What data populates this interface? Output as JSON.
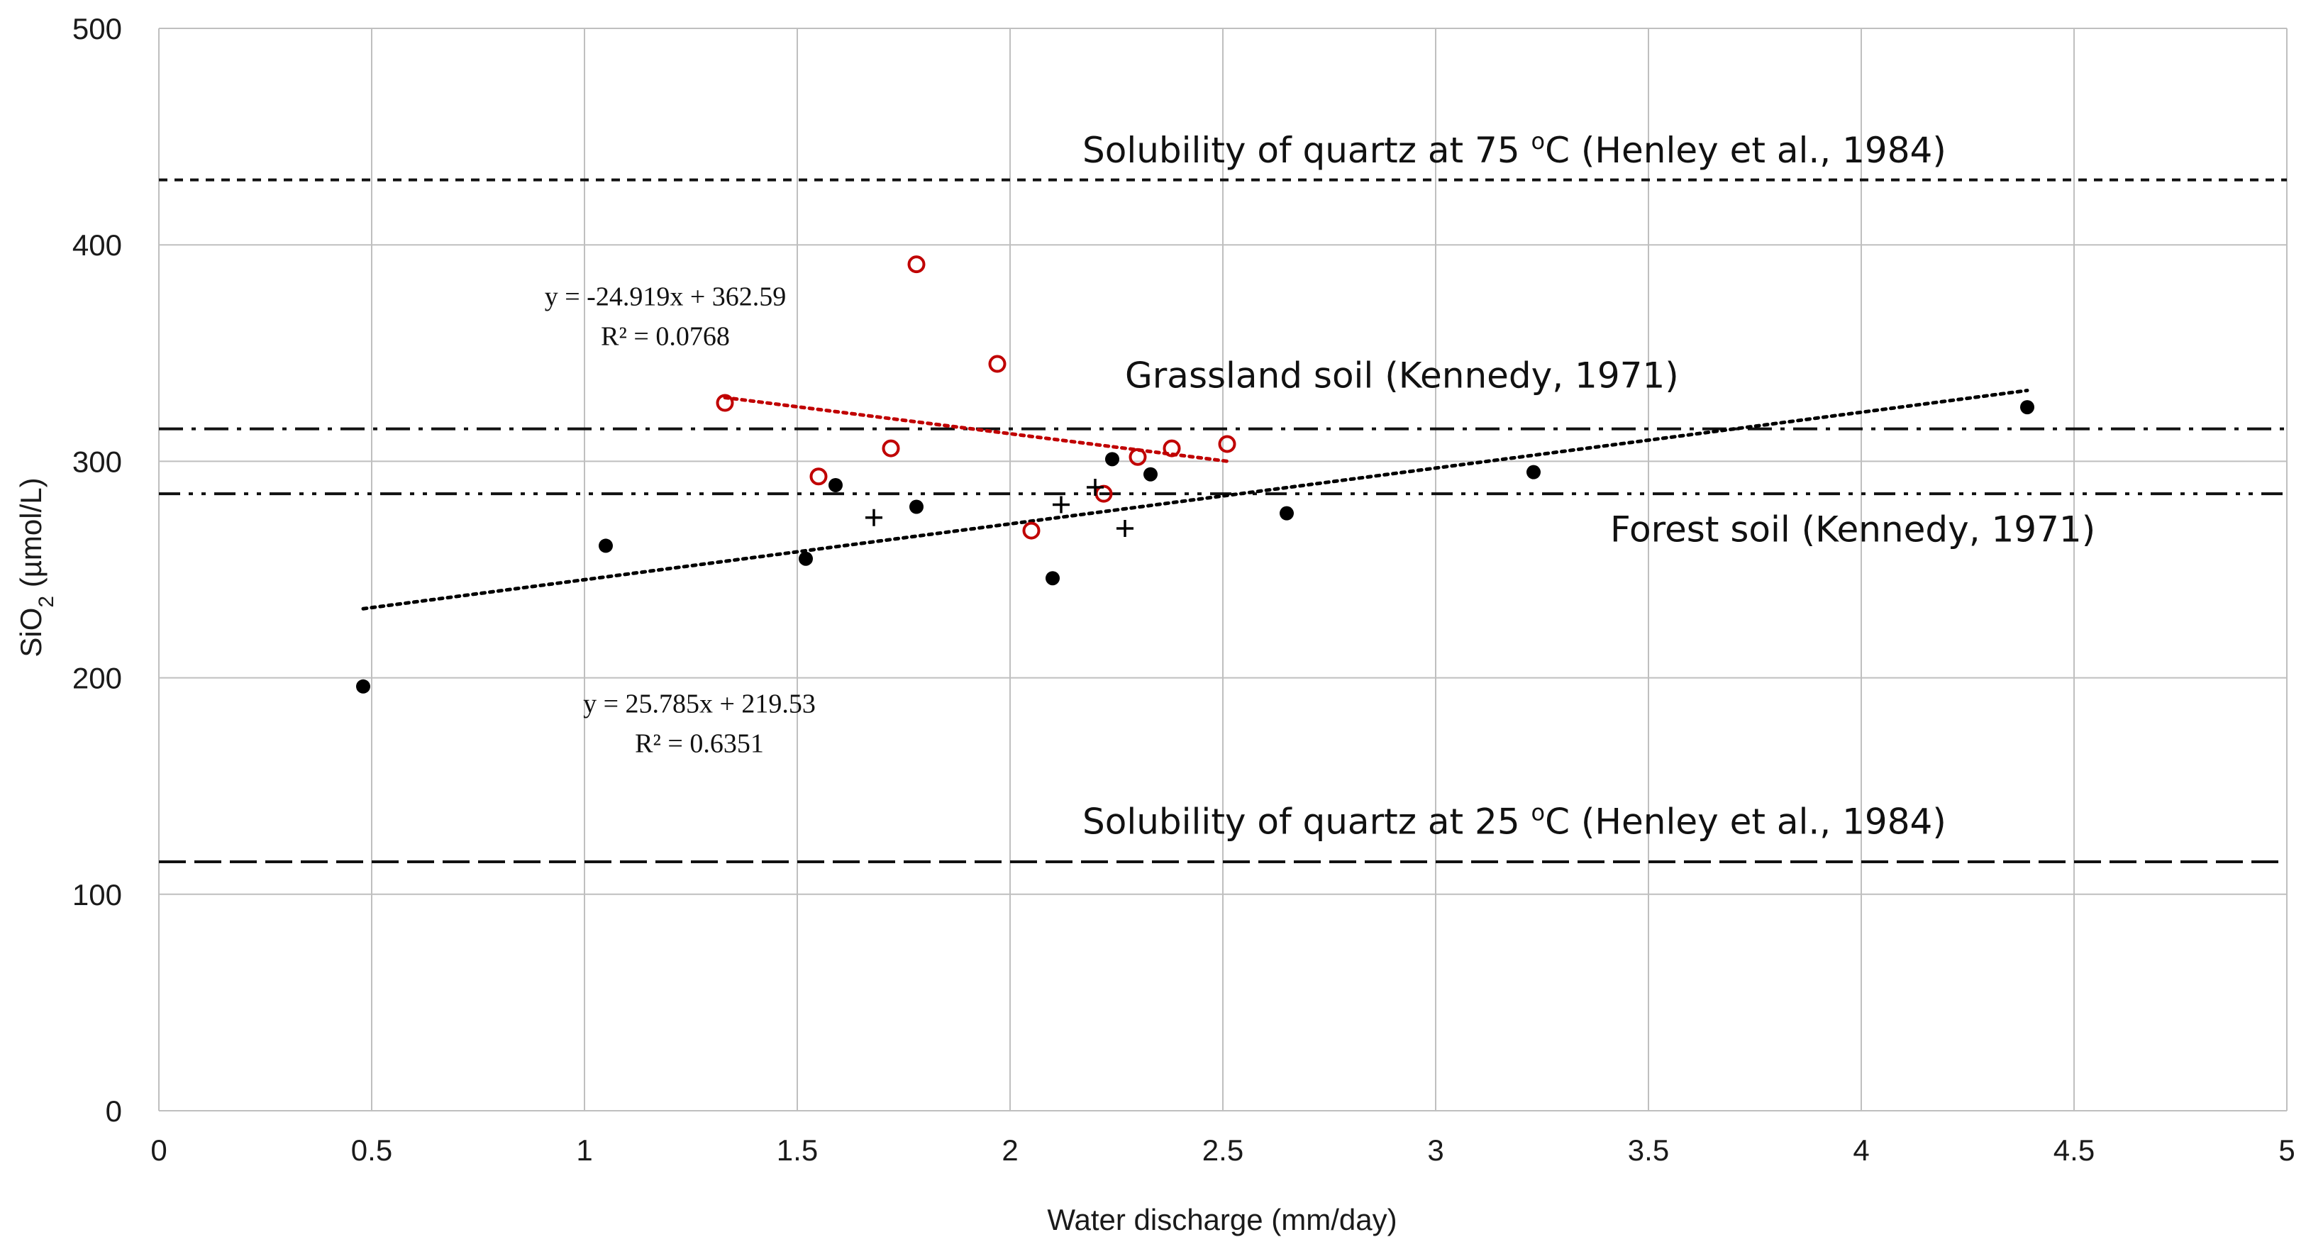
{
  "chart_data": {
    "type": "scatter",
    "xlabel": "Water discharge (mm/day)",
    "ylabel_parts": [
      "SiO",
      "2",
      " (µmol/L)"
    ],
    "xlim": [
      0,
      5
    ],
    "ylim": [
      0,
      500
    ],
    "x_ticks": [
      "0",
      "0.5",
      "1",
      "1.5",
      "2",
      "2.5",
      "3",
      "3.5",
      "4",
      "4.5",
      "5"
    ],
    "y_ticks": [
      "0",
      "100",
      "200",
      "300",
      "400",
      "500"
    ],
    "grid": true,
    "series": [
      {
        "marker": "filled-circle",
        "color": "#000000",
        "points": [
          [
            0.48,
            196
          ],
          [
            1.05,
            261
          ],
          [
            1.52,
            255
          ],
          [
            1.59,
            289
          ],
          [
            1.78,
            279
          ],
          [
            2.1,
            246
          ],
          [
            2.24,
            301
          ],
          [
            2.33,
            294
          ],
          [
            2.65,
            276
          ],
          [
            3.23,
            295
          ],
          [
            4.39,
            325
          ]
        ]
      },
      {
        "marker": "open-circle",
        "color": "#c00000",
        "points": [
          [
            1.33,
            327
          ],
          [
            1.55,
            293
          ],
          [
            1.72,
            306
          ],
          [
            1.78,
            391
          ],
          [
            1.97,
            345
          ],
          [
            2.05,
            268
          ],
          [
            2.22,
            285
          ],
          [
            2.3,
            302
          ],
          [
            2.38,
            306
          ],
          [
            2.51,
            308
          ]
        ]
      },
      {
        "marker": "plus",
        "color": "#000000",
        "points": [
          [
            1.68,
            274
          ],
          [
            2.12,
            280
          ],
          [
            2.2,
            288
          ],
          [
            2.27,
            269
          ]
        ]
      }
    ],
    "trendlines": [
      {
        "color": "#000000",
        "slope": 25.785,
        "intercept": 219.53,
        "x_range": [
          0.48,
          4.39
        ],
        "equation": "y = 25.785x + 219.53",
        "r2_text": "R² = 0.6351",
        "label_pos": [
          1.27,
          184
        ]
      },
      {
        "color": "#c00000",
        "slope": -24.919,
        "intercept": 362.59,
        "x_range": [
          1.33,
          2.51
        ],
        "equation": "y = -24.919x + 362.59",
        "r2_text": "R² = 0.0768",
        "label_pos": [
          1.19,
          372
        ]
      }
    ],
    "reference_lines": [
      {
        "y": 430,
        "style": "short-dash",
        "label_parts": [
          "Solubility of quartz at 75 ",
          "o",
          "C (Henley et al., 1984)"
        ],
        "label_x": 2.17,
        "label_y": 438
      },
      {
        "y": 315,
        "style": "dash-dot",
        "label_parts": [
          "Grassland soil  (Kennedy, 1971)"
        ],
        "label_x": 2.27,
        "label_y": 334
      },
      {
        "y": 285,
        "style": "dash-dot-dot",
        "label_parts": [
          "Forest soil  (Kennedy, 1971)"
        ],
        "label_x": 3.41,
        "label_y": 263
      },
      {
        "y": 115,
        "style": "long-dash",
        "label_parts": [
          "Solubility of quartz at 25 ",
          "o",
          "C (Henley et al., 1984)"
        ],
        "label_x": 2.17,
        "label_y": 128
      }
    ]
  }
}
